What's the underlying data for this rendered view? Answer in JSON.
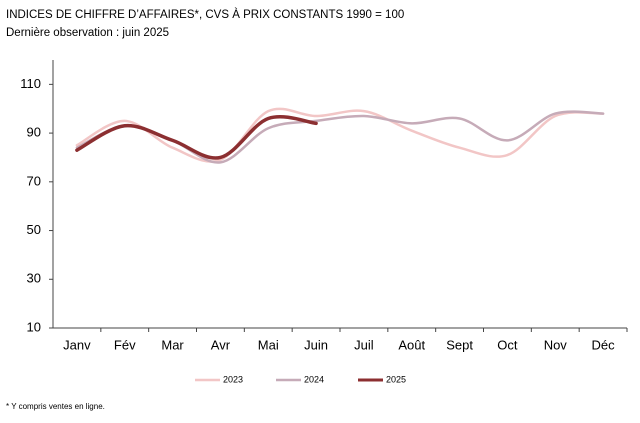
{
  "chart_data": {
    "type": "line",
    "title": "INDICES DE CHIFFRE D’AFFAIRES*, CVS À PRIX CONSTANTS 1990 = 100",
    "subtitle": "Dernière observation : juin 2025",
    "categories": [
      "Janv",
      "Fév",
      "Mar",
      "Avr",
      "Mai",
      "Juin",
      "Juil",
      "Août",
      "Sept",
      "Oct",
      "Nov",
      "Déc"
    ],
    "series": [
      {
        "name": "2023",
        "color": "#f2c6c6",
        "values": [
          85,
          95,
          84,
          79,
          99,
          97,
          99,
          91,
          84,
          81,
          97,
          98
        ]
      },
      {
        "name": "2024",
        "color": "#c6abb8",
        "values": [
          84,
          93,
          87,
          78,
          92,
          95,
          97,
          94,
          96,
          87,
          98,
          98
        ]
      },
      {
        "name": "2025",
        "color": "#8c2f31",
        "values": [
          83,
          93,
          87,
          80,
          96,
          94,
          null,
          null,
          null,
          null,
          null,
          null
        ]
      }
    ],
    "ylim": [
      10,
      120
    ],
    "yticks": [
      10,
      30,
      50,
      70,
      90,
      110
    ],
    "grid": false,
    "legend": "bottom",
    "footnote": "* Y compris ventes en ligne."
  }
}
